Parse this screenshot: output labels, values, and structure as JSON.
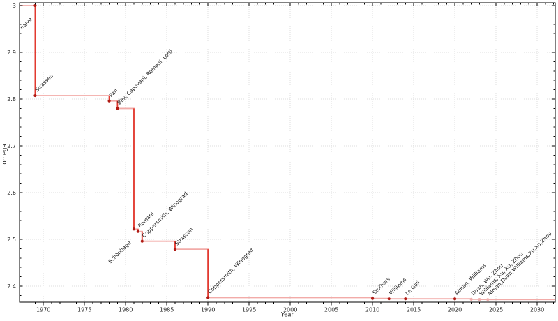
{
  "figure": {
    "xlabel": "Year",
    "ylabel": "omega"
  },
  "chart_data": {
    "type": "line",
    "subtype": "step-post",
    "title": "",
    "xlabel": "Year",
    "ylabel": "omega",
    "xlim": [
      1967.1,
      2032.2
    ],
    "ylim": [
      2.3657,
      3.006
    ],
    "x_major_ticks": [
      1970,
      1975,
      1980,
      1985,
      1990,
      1995,
      2000,
      2005,
      2010,
      2015,
      2020,
      2025,
      2030
    ],
    "x_minor_step": 1,
    "y_major_ticks": [
      {
        "value": 3.0,
        "label": "3"
      },
      {
        "value": 2.9,
        "label": "2.9"
      },
      {
        "value": 2.8,
        "label": "2.8"
      },
      {
        "value": 2.7,
        "label": "2.7"
      },
      {
        "value": 2.6,
        "label": "2.6"
      },
      {
        "value": 2.5,
        "label": "2.5"
      },
      {
        "value": 2.4,
        "label": "2.4"
      }
    ],
    "y_minor_step": 0.02,
    "grid": "dotted-major",
    "legend": "none",
    "points": [
      {
        "year": 1969,
        "omega": 3.0,
        "label": "naive",
        "label_side": "lower-left",
        "muted": false
      },
      {
        "year": 1969,
        "omega": 2.8074,
        "label": "Strassen",
        "label_side": "upper-right",
        "muted": false
      },
      {
        "year": 1978,
        "omega": 2.796,
        "label": "Pan",
        "label_side": "upper-right",
        "muted": false
      },
      {
        "year": 1979,
        "omega": 2.78,
        "label": "Bini, Capovani, Romani, Lotti",
        "label_side": "upper-right",
        "muted": false
      },
      {
        "year": 1981,
        "omega": 2.522,
        "label": "Schönhage",
        "label_side": "lower-left",
        "muted": false
      },
      {
        "year": 1981.5,
        "omega": 2.517,
        "label": "Romani",
        "label_side": "upper-right",
        "muted": false
      },
      {
        "year": 1982,
        "omega": 2.496,
        "label": "Coppersmith, Winograd",
        "label_side": "upper-right",
        "muted": false
      },
      {
        "year": 1986,
        "omega": 2.479,
        "label": "Strassen",
        "label_side": "upper-right",
        "muted": false
      },
      {
        "year": 1990,
        "omega": 2.3755,
        "label": "Coppersmith, Winograd",
        "label_side": "upper-right",
        "muted": false
      },
      {
        "year": 2010,
        "omega": 2.3737,
        "label": "Stothers",
        "label_side": "upper-right",
        "muted": false
      },
      {
        "year": 2012,
        "omega": 2.3729,
        "label": "Williams",
        "label_side": "upper-right",
        "muted": false
      },
      {
        "year": 2014,
        "omega": 2.3728639,
        "label": "Le Gall",
        "label_side": "upper-right",
        "muted": false
      },
      {
        "year": 2020,
        "omega": 2.3728596,
        "label": "Alman, Williams",
        "label_side": "upper-right",
        "muted": false
      },
      {
        "year": 2022,
        "omega": 2.371866,
        "label": "Duan, Wu, Zhou",
        "label_side": "upper-right",
        "muted": true
      },
      {
        "year": 2023,
        "omega": 2.371552,
        "label": "Williams, Xu, Xu, Zhou",
        "label_side": "upper-right",
        "muted": true
      },
      {
        "year": 2024,
        "omega": 2.371339,
        "label": "Alman,Duan,Williams,Xu,Xu,Zhou",
        "label_side": "upper-right",
        "muted": true
      }
    ],
    "style": {
      "line_light": "#f2aba8",
      "line_strong": "#e23a30",
      "marker": "#b01b14",
      "marker_muted": "#f0b0ae",
      "label_color": "#1c1c1c",
      "label_muted": "#a8a8a8",
      "grid_color": "#dcdcdc",
      "spine_color": "#000000",
      "tick_label_color": "#1a1a1a"
    }
  }
}
